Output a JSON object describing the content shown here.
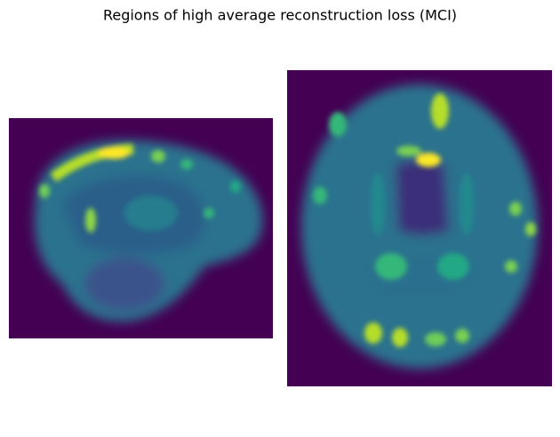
{
  "title": "Regions of high average reconstruction loss (MCI)"
}
